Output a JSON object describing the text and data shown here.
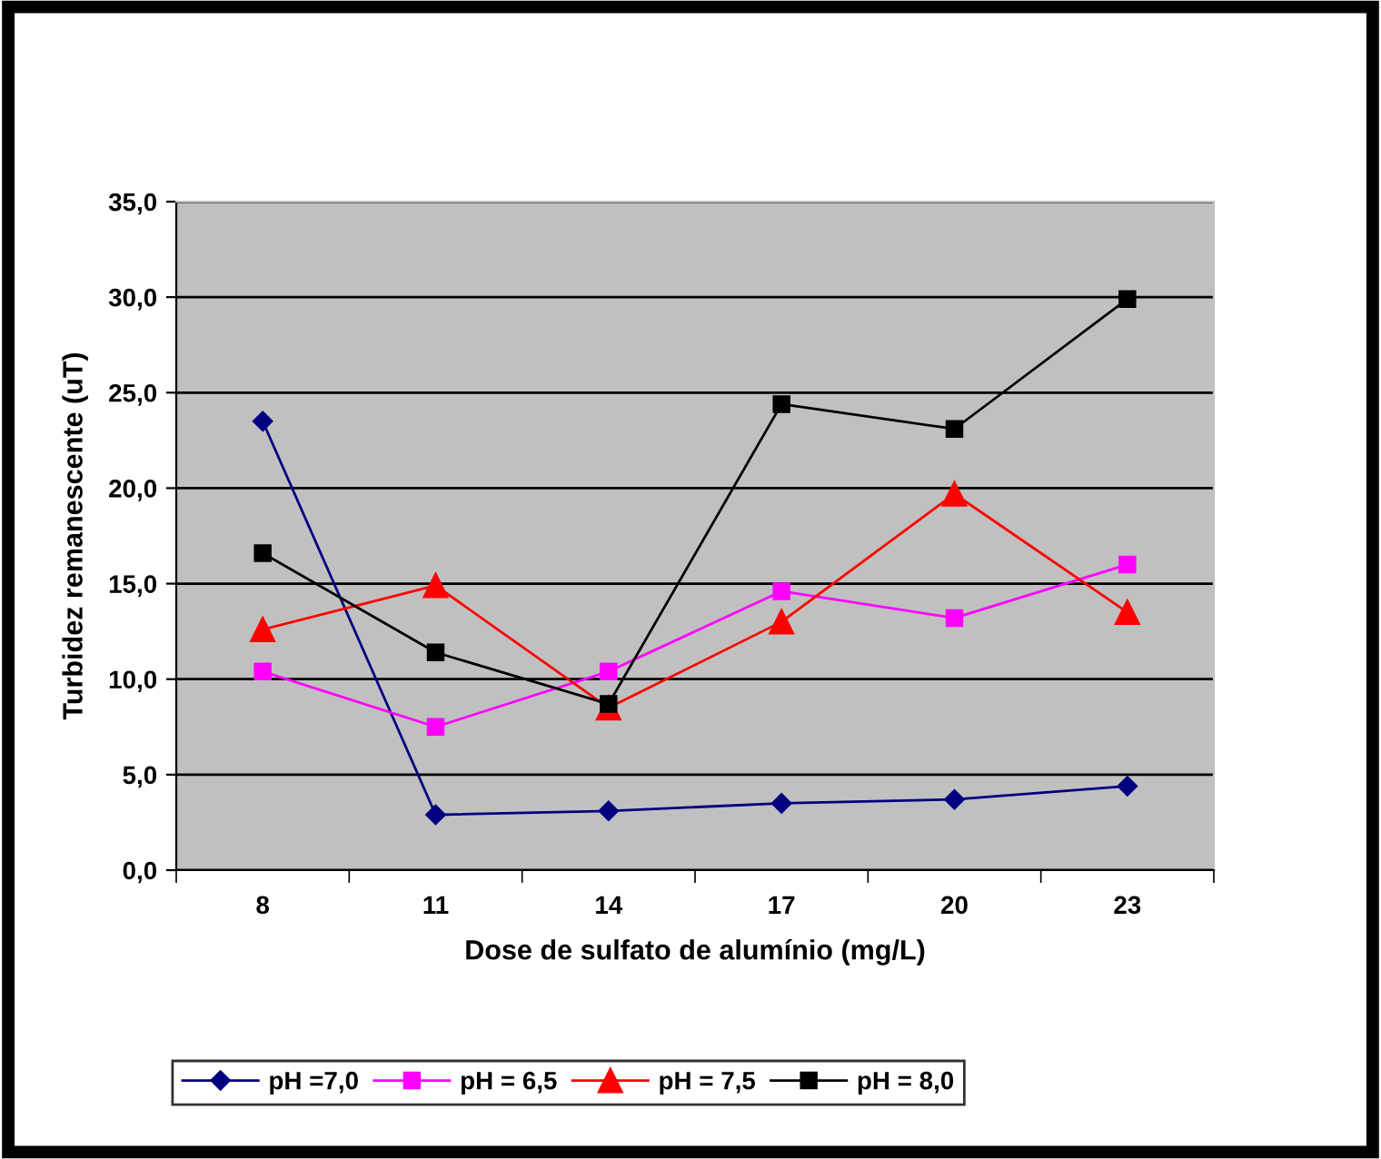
{
  "chart_data": {
    "type": "line",
    "xlabel": "Dose de sulfato de alumínio (mg/L)",
    "ylabel": "Turbidez remanescente (uT)",
    "categories": [
      "8",
      "11",
      "14",
      "17",
      "20",
      "23"
    ],
    "series": [
      {
        "name": "pH =7,0",
        "color": "#000080",
        "marker": "diamond",
        "values": [
          23.5,
          2.9,
          3.1,
          3.5,
          3.7,
          4.4
        ]
      },
      {
        "name": "pH = 6,5",
        "color": "#ff00ff",
        "marker": "square",
        "values": [
          10.4,
          7.5,
          10.4,
          14.6,
          13.2,
          16.0
        ]
      },
      {
        "name": "pH = 7,5",
        "color": "#ff0000",
        "marker": "triangle",
        "values": [
          12.6,
          14.9,
          8.5,
          13.0,
          19.7,
          13.5
        ]
      },
      {
        "name": "pH = 8,0",
        "color": "#000000",
        "marker": "square",
        "values": [
          16.6,
          11.4,
          8.7,
          24.4,
          23.1,
          29.9
        ]
      }
    ],
    "ylim": [
      0,
      35
    ],
    "yticks": [
      {
        "value": 0,
        "label": "0,0"
      },
      {
        "value": 5,
        "label": "5,0"
      },
      {
        "value": 10,
        "label": "10,0"
      },
      {
        "value": 15,
        "label": "15,0"
      },
      {
        "value": 20,
        "label": "20,0"
      },
      {
        "value": 25,
        "label": "25,0"
      },
      {
        "value": 30,
        "label": "30,0"
      },
      {
        "value": 35,
        "label": "35,0"
      }
    ],
    "grid": "y",
    "legend": "bottom",
    "line_style": "solid"
  }
}
